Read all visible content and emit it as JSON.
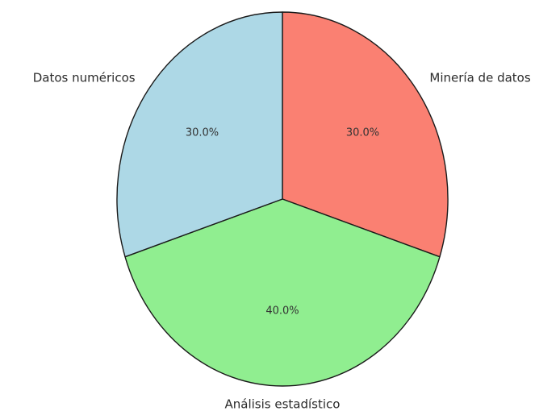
{
  "chart_data": {
    "type": "pie",
    "title": "",
    "categories": [
      "Minería de datos",
      "Análisis estadístico",
      "Datos numéricos"
    ],
    "values": [
      30.0,
      40.0,
      30.0
    ],
    "percent_labels": [
      "30.0%",
      "40.0%",
      "30.0%"
    ],
    "colors": [
      "#fa8072",
      "#90ee90",
      "#add8e6"
    ],
    "edge_color": "#1a1a1a",
    "start_angle_deg": 90,
    "direction": "clockwise",
    "legend": "none"
  }
}
